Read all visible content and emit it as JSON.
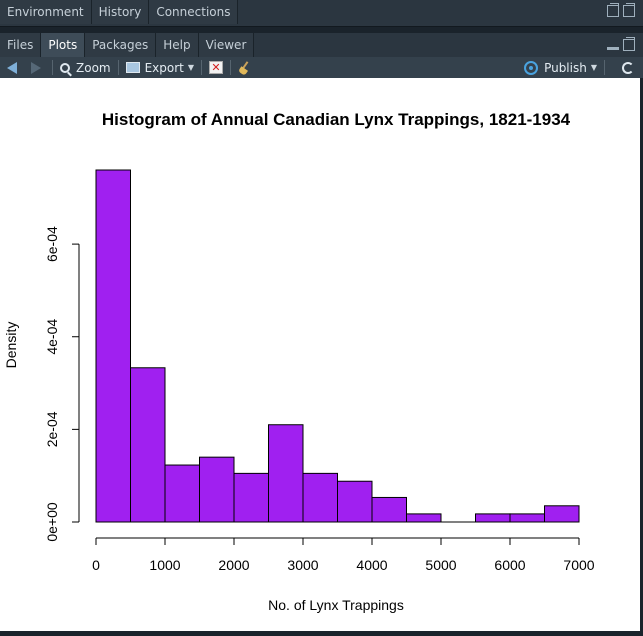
{
  "top_pane": {
    "tabs": [
      {
        "label": "Environment",
        "active": false
      },
      {
        "label": "History",
        "active": false
      },
      {
        "label": "Connections",
        "active": false
      }
    ]
  },
  "bottom_pane": {
    "tabs": [
      {
        "label": "Files",
        "active": false
      },
      {
        "label": "Plots",
        "active": true
      },
      {
        "label": "Packages",
        "active": false
      },
      {
        "label": "Help",
        "active": false
      },
      {
        "label": "Viewer",
        "active": false
      }
    ]
  },
  "toolbar": {
    "zoom_label": "Zoom",
    "export_label": "Export",
    "publish_label": "Publish"
  },
  "colors": {
    "bar_fill": "#a020f0",
    "bar_stroke": "#000000"
  },
  "chart_data": {
    "type": "bar",
    "title": "Histogram of Annual Canadian Lynx Trappings, 1821-1934",
    "xlabel": "No. of Lynx Trappings",
    "ylabel": "Density",
    "bins": [
      {
        "start": 0,
        "end": 500,
        "density": 0.00076
      },
      {
        "start": 500,
        "end": 1000,
        "density": 0.000333
      },
      {
        "start": 1000,
        "end": 1500,
        "density": 0.000123
      },
      {
        "start": 1500,
        "end": 2000,
        "density": 0.00014
      },
      {
        "start": 2000,
        "end": 2500,
        "density": 0.000105
      },
      {
        "start": 2500,
        "end": 3000,
        "density": 0.00021
      },
      {
        "start": 3000,
        "end": 3500,
        "density": 0.000105
      },
      {
        "start": 3500,
        "end": 4000,
        "density": 8.8e-05
      },
      {
        "start": 4000,
        "end": 4500,
        "density": 5.3e-05
      },
      {
        "start": 4500,
        "end": 5000,
        "density": 1.75e-05
      },
      {
        "start": 5000,
        "end": 5500,
        "density": 0
      },
      {
        "start": 5500,
        "end": 6000,
        "density": 1.75e-05
      },
      {
        "start": 6000,
        "end": 6500,
        "density": 1.75e-05
      },
      {
        "start": 6500,
        "end": 7000,
        "density": 3.5e-05
      }
    ],
    "x_ticks": [
      0,
      1000,
      2000,
      3000,
      4000,
      5000,
      6000,
      7000
    ],
    "x_tick_labels": [
      "0",
      "1000",
      "2000",
      "3000",
      "4000",
      "5000",
      "6000",
      "7000"
    ],
    "y_ticks": [
      0,
      0.0002,
      0.0004,
      0.0006
    ],
    "y_tick_labels": [
      "0e+00",
      "2e-04",
      "4e-04",
      "6e-04"
    ],
    "xlim": [
      0,
      7000
    ],
    "ylim": [
      0,
      0.00076
    ],
    "grid": false
  }
}
